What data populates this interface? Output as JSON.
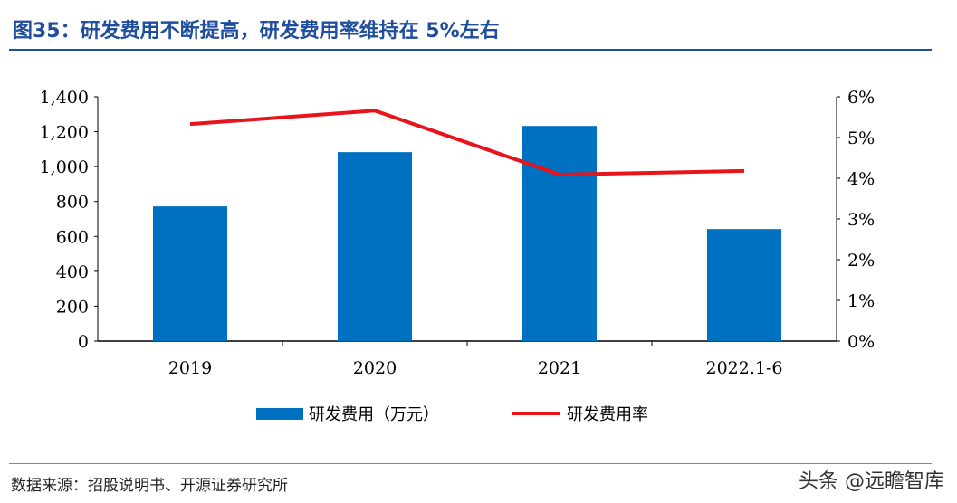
{
  "title": "图35：研发费用不断提高，研发费用率维持在 5%左右",
  "source": "数据来源：招股说明书、开源证券研究所",
  "watermark": "头条 @远瞻智库",
  "chart_data": {
    "type": "bar+line",
    "categories": [
      "2019",
      "2020",
      "2021",
      "2022.1-6"
    ],
    "series": [
      {
        "name": "研发费用（万元）",
        "type": "bar",
        "axis": "left",
        "color": "#0070c0",
        "values": [
          772,
          1083,
          1233,
          642
        ]
      },
      {
        "name": "研发费用率",
        "type": "line",
        "axis": "right",
        "color": "#e8141b",
        "values": [
          5.33,
          5.66,
          4.09,
          4.18
        ]
      }
    ],
    "ylim": [
      0,
      1400
    ],
    "yticks": [
      "0",
      "200",
      "400",
      "600",
      "800",
      "1,000",
      "1,200",
      "1,400"
    ],
    "y2lim": [
      0,
      6
    ],
    "y2ticks": [
      "0%",
      "1%",
      "2%",
      "3%",
      "4%",
      "5%",
      "6%"
    ],
    "grid": false,
    "legend": "bottom"
  }
}
